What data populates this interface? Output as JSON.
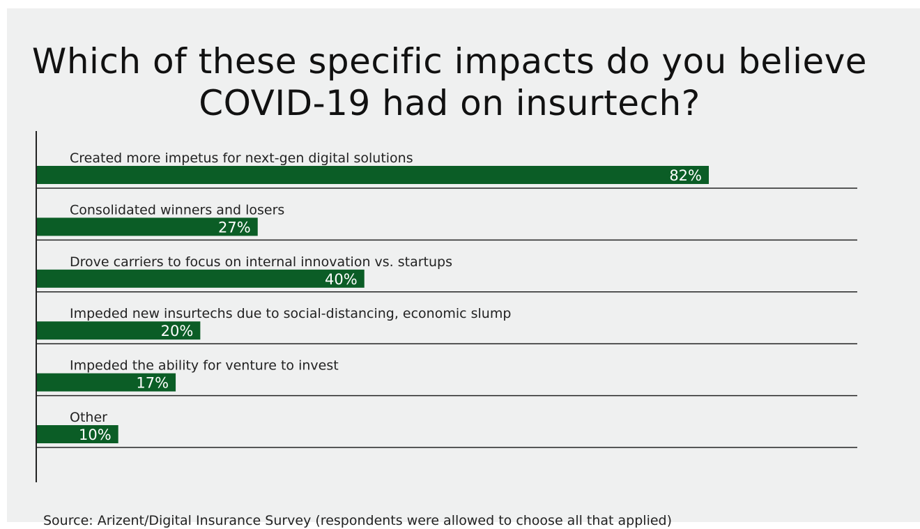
{
  "chart_data": {
    "type": "bar",
    "orientation": "horizontal",
    "title": "Which of these specific impacts do you believe COVID-19 had on insurtech?",
    "categories": [
      "Created more impetus for next-gen digital solutions",
      "Consolidated winners and losers",
      "Drove carriers to focus on internal innovation vs. startups",
      "Impeded new insurtechs due to social-distancing, economic slump",
      "Impeded the ability for venture to invest",
      "Other"
    ],
    "values": [
      82,
      27,
      40,
      20,
      17,
      10
    ],
    "value_labels": [
      "82%",
      "27%",
      "40%",
      "20%",
      "17%",
      "10%"
    ],
    "unit": "%",
    "xlim": [
      0,
      100
    ],
    "grid": false,
    "legend": "none",
    "colors": {
      "bar": "#0b5d26",
      "background": "#eff0f0",
      "axis": "#222222"
    }
  },
  "source": "Source: Arizent/Digital Insurance Survey (respondents were allowed to choose all that applied)"
}
